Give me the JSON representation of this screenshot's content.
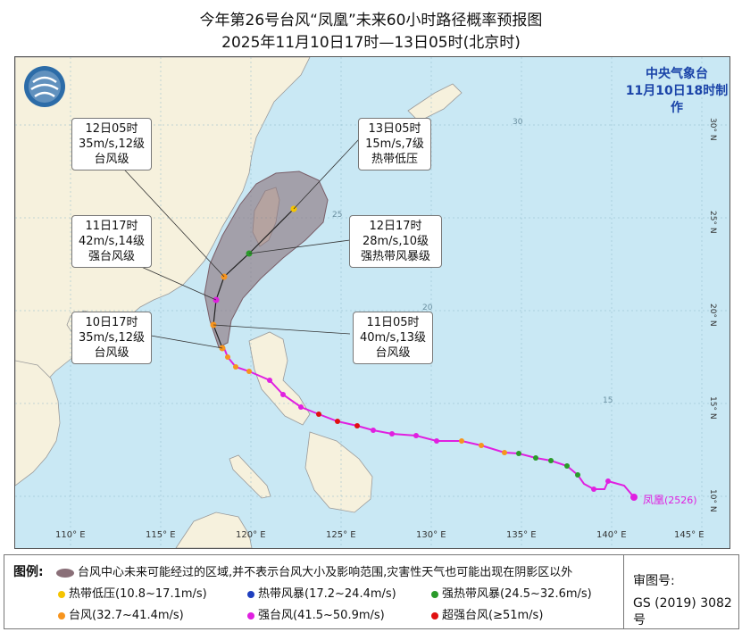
{
  "title_line1": "今年第26号台风“凤凰”未来60小时路径概率预报图",
  "title_line2": "2025年11月10日17时—13日05时(北京时)",
  "agency": {
    "name": "中央气象台",
    "issued": "11月10日18时制作"
  },
  "typhoon_label": "凤凰",
  "typhoon_code": "(2526)",
  "axes": {
    "lon_labels": [
      "110° E",
      "115° E",
      "120° E",
      "125° E",
      "130° E",
      "135° E",
      "140° E",
      "145° E"
    ],
    "lat_labels": [
      "10° N",
      "15° N",
      "20° N",
      "25° N",
      "30° N"
    ],
    "inner_lat_labels": [
      "15",
      "20",
      "25",
      "30"
    ]
  },
  "forecast_points": [
    {
      "time": "10日17时",
      "wind": "35m/s,12级",
      "level": "台风级",
      "color": "#f7941d"
    },
    {
      "time": "11日05时",
      "wind": "40m/s,13级",
      "level": "台风级",
      "color": "#f7941d"
    },
    {
      "time": "11日17时",
      "wind": "42m/s,14级",
      "level": "强台风级",
      "color": "#e020e0"
    },
    {
      "time": "12日05时",
      "wind": "35m/s,12级",
      "level": "台风级",
      "color": "#f7941d"
    },
    {
      "time": "12日17时",
      "wind": "28m/s,10级",
      "level": "强热带风暴级",
      "color": "#2a9a2a"
    },
    {
      "time": "13日05时",
      "wind": "15m/s,7级",
      "level": "热带低压",
      "color": "#f5c400"
    }
  ],
  "legend": {
    "title": "图例:",
    "area_desc": "台风中心未来可能经过的区域,并不表示台风大小及影响范围,灾害性天气也可能出现在阴影区以外",
    "items": [
      {
        "label": "热带低压(10.8~17.1m/s)",
        "color": "#f5c400"
      },
      {
        "label": "热带风暴(17.2~24.4m/s)",
        "color": "#1f3fbf"
      },
      {
        "label": "强热带风暴(24.5~32.6m/s)",
        "color": "#2a9a2a"
      },
      {
        "label": "台风(32.7~41.4m/s)",
        "color": "#f7941d"
      },
      {
        "label": "强台风(41.5~50.9m/s)",
        "color": "#e020e0"
      },
      {
        "label": "超强台风(≥51m/s)",
        "color": "#e01010"
      }
    ],
    "approval_label": "审图号:",
    "approval_number": "GS (2019) 3082号"
  }
}
